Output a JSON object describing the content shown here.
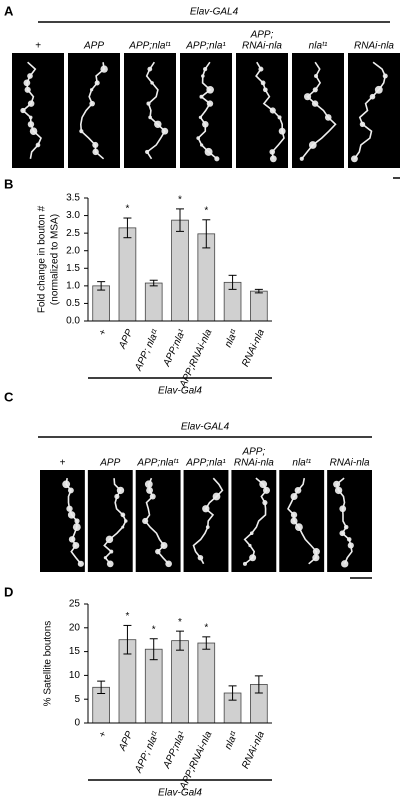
{
  "panels": [
    {
      "label": "A",
      "title": "Elav-GAL4",
      "labels": [
        [
          "+"
        ],
        [
          "APP"
        ],
        [
          "APP;nlaᵗ¹"
        ],
        [
          "APP;nla¹"
        ],
        [
          "APP;",
          "RNAi-nla"
        ],
        [
          "nlaᵗ¹"
        ],
        [
          "RNAi-nla"
        ]
      ]
    },
    {
      "label": "B"
    },
    {
      "label": "C",
      "title": "Elav-GAL4",
      "labels": [
        [
          "+"
        ],
        [
          "APP"
        ],
        [
          "APP;nlaᵗ¹"
        ],
        [
          "APP;nla¹"
        ],
        [
          "APP;",
          "RNAi-nla"
        ],
        [
          "nlaᵗ¹"
        ],
        [
          "RNAi-nla"
        ]
      ]
    },
    {
      "label": "D"
    }
  ],
  "chart_data": [
    {
      "type": "bar",
      "y_label": [
        "Fold change in bouton #",
        "(normalized to MSA)"
      ],
      "group_label": "Elav-Gal4",
      "categories": [
        "+",
        "APP",
        "APP; nlaᵗ¹",
        "APP;nla¹",
        "APP;RNAi-nla",
        "nlaᵗ¹",
        "RNAi-nla"
      ],
      "values": [
        1.0,
        2.65,
        1.08,
        2.87,
        2.48,
        1.1,
        0.85
      ],
      "errors": [
        0.12,
        0.28,
        0.08,
        0.32,
        0.4,
        0.2,
        0.05
      ],
      "color": "#d0d0d0",
      "ylim": [
        0,
        3.5
      ],
      "yticks": [
        {
          "value": 0,
          "label": "0.0"
        },
        {
          "value": 0.5,
          "label": "0.5"
        },
        {
          "value": 1,
          "label": "1.0"
        },
        {
          "value": 1.5,
          "label": "1.5"
        },
        {
          "value": 2,
          "label": "2.0"
        },
        {
          "value": 2.5,
          "label": "2.5"
        },
        {
          "value": 3,
          "label": "3.0"
        },
        {
          "value": 3.5,
          "label": "3.5"
        }
      ],
      "annotations": [
        {
          "category": "APP",
          "text": "*"
        },
        {
          "category": "APP;nla¹",
          "text": "*"
        },
        {
          "category": "APP;RNAi-nla",
          "text": "*"
        }
      ]
    },
    {
      "type": "bar",
      "y_label": [
        "% Satellite boutons"
      ],
      "group_label": "Elav-Gal4",
      "categories": [
        "+",
        "APP",
        "APP; nlaᵗ¹",
        "APP;nla¹",
        "APP;RNAi-nla",
        "nlaᵗ¹",
        "RNAi-nla"
      ],
      "values": [
        7.5,
        17.5,
        15.5,
        17.3,
        16.8,
        6.3,
        8.1
      ],
      "errors": [
        1.3,
        3,
        2.2,
        2,
        1.3,
        1.5,
        1.8
      ],
      "color": "#d0d0d0",
      "ylim": [
        0,
        25
      ],
      "yticks": [
        0,
        5,
        10,
        15,
        20,
        25
      ],
      "annotations": [
        {
          "category": "APP",
          "text": "*"
        },
        {
          "category": "APP; nlaᵗ¹",
          "text": "*"
        },
        {
          "category": "APP;nla¹",
          "text": "*"
        },
        {
          "category": "APP;RNAi-nla",
          "text": "*"
        }
      ]
    }
  ]
}
